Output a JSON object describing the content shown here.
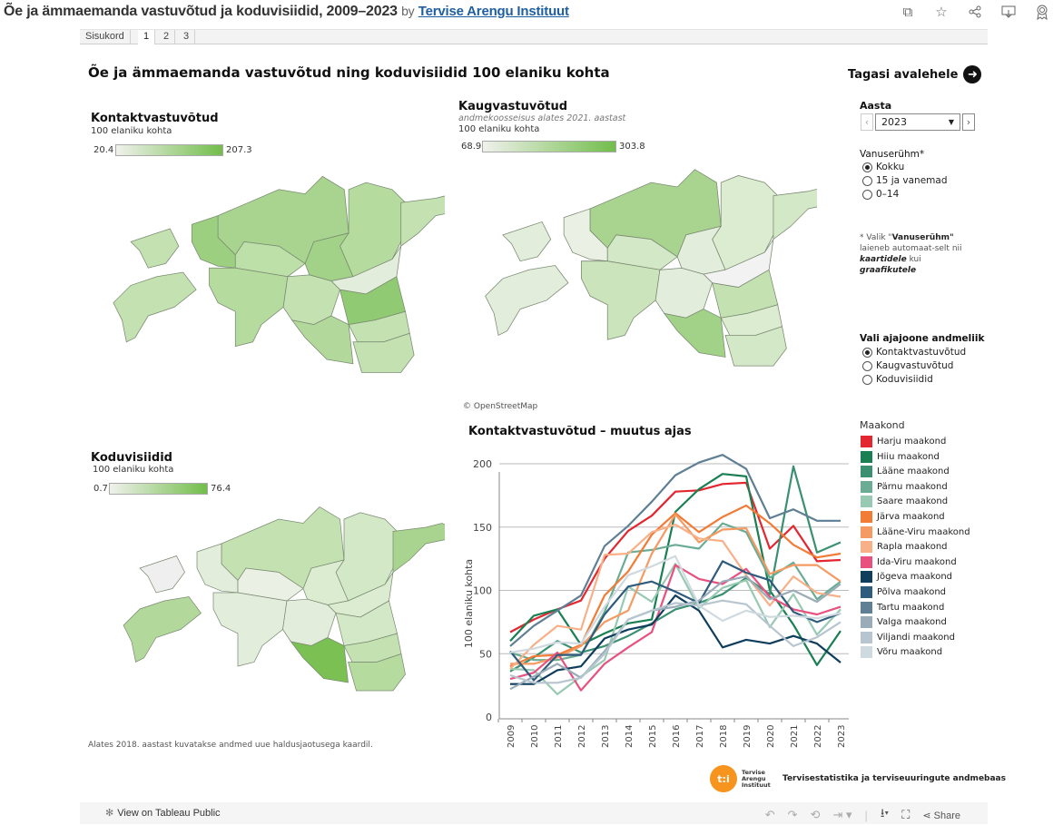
{
  "header": {
    "title": "Õe ja ämmaemanda vastuvõtud ja koduvisiidid, 2009–2023",
    "by": "by",
    "author": "Tervise Arengu Instituut",
    "icons": [
      "copy-icon",
      "star-icon",
      "share-icon",
      "download-icon",
      "award-icon"
    ]
  },
  "tabs": [
    {
      "label": "Sisukord",
      "active": false
    },
    {
      "label": "1",
      "active": true
    },
    {
      "label": "2",
      "active": false
    },
    {
      "label": "3",
      "active": false
    }
  ],
  "dashboard": {
    "title": "Õe ja ämmaemanda vastuvõtud ning koduvisiidid  100 elaniku kohta",
    "back_link": "Tagasi avalehele"
  },
  "maps": {
    "contact": {
      "title": "Kontaktvastuvõtud",
      "unit": "100 elaniku kohta",
      "min": "20.4",
      "max": "207.3"
    },
    "remote": {
      "title": "Kaugvastuvõtud",
      "note": "andmekoosseisus alates 2021. aastast",
      "unit": "100 elaniku kohta",
      "min": "68.9",
      "max": "303.8"
    },
    "home": {
      "title": "Koduvisiidid",
      "unit": "100 elaniku kohta",
      "min": "0.7",
      "max": "76.4"
    },
    "attribution": "© OpenStreetMap",
    "footnote": "Alates 2018. aastast kuvatakse andmed uue haldusjaotusega kaardil."
  },
  "controls": {
    "year_label": "Aasta",
    "year_value": "2023",
    "age_label": "Vanuserühm*",
    "age_options": [
      {
        "label": "Kokku",
        "selected": true
      },
      {
        "label": "15 ja vanemad",
        "selected": false
      },
      {
        "label": "0–14",
        "selected": false
      }
    ],
    "note_parts": [
      "* Valik \"",
      "Vanuserühm\"",
      " laieneb automaat-selt nii ",
      "kaartidele",
      " kui ",
      "graafikutele"
    ],
    "measure_label": "Vali ajajoone andmeliik",
    "measure_options": [
      {
        "label": "Kontaktvastuvõtud",
        "selected": true
      },
      {
        "label": "Kaugvastuvõtud",
        "selected": false
      },
      {
        "label": "Koduvisiidid",
        "selected": false
      }
    ]
  },
  "chart_data": {
    "type": "line",
    "title": "Kontaktvastuvõtud – muutus ajas",
    "xlabel": "",
    "ylabel": "100 elaniku kohta",
    "ylim": [
      0,
      220
    ],
    "yticks": [
      0,
      50,
      100,
      150,
      200
    ],
    "grid": true,
    "legend_title": "Maakond",
    "legend_position": "right",
    "x": [
      "2009",
      "2010",
      "2011",
      "2012",
      "2013",
      "2014",
      "2015",
      "2016",
      "2017",
      "2018",
      "2019",
      "2020",
      "2021",
      "2022",
      "2023"
    ],
    "series": [
      {
        "name": "Harju maakond",
        "color": "#e3262f",
        "values": [
          67,
          77,
          85,
          92,
          125,
          147,
          159,
          178,
          179,
          184,
          185,
          133,
          151,
          123,
          124
        ]
      },
      {
        "name": "Hiiu maakond",
        "color": "#1a7f53",
        "values": [
          60,
          80,
          85,
          57,
          66,
          74,
          77,
          162,
          180,
          192,
          190,
          100,
          73,
          41,
          68
        ]
      },
      {
        "name": "Lääne maakond",
        "color": "#3a9070",
        "values": [
          36,
          47,
          60,
          51,
          56,
          64,
          74,
          85,
          90,
          97,
          110,
          97,
          198,
          130,
          138
        ]
      },
      {
        "name": "Pärnu maakond",
        "color": "#6aad94",
        "values": [
          51,
          45,
          45,
          49,
          83,
          130,
          132,
          136,
          133,
          153,
          146,
          110,
          122,
          93,
          107
        ]
      },
      {
        "name": "Saare maakond",
        "color": "#98c9b3",
        "values": [
          38,
          37,
          18,
          32,
          45,
          103,
          91,
          121,
          86,
          102,
          108,
          71,
          97,
          65,
          85
        ]
      },
      {
        "name": "Järva maakond",
        "color": "#f27b35",
        "values": [
          40,
          48,
          49,
          57,
          96,
          115,
          144,
          161,
          146,
          158,
          167,
          153,
          136,
          126,
          129
        ]
      },
      {
        "name": "Lääne-Viru maakond",
        "color": "#f59a62",
        "values": [
          42,
          42,
          47,
          56,
          75,
          84,
          129,
          160,
          138,
          148,
          149,
          113,
          120,
          120,
          107
        ]
      },
      {
        "name": "Rapla maakond",
        "color": "#f7b088",
        "values": [
          38,
          57,
          72,
          69,
          128,
          129,
          146,
          152,
          141,
          139,
          112,
          88,
          111,
          98,
          95
        ]
      },
      {
        "name": "Ida-Viru maakond",
        "color": "#e8507f",
        "values": [
          30,
          35,
          51,
          21,
          42,
          55,
          67,
          120,
          109,
          105,
          117,
          95,
          85,
          81,
          87
        ]
      },
      {
        "name": "Jõgeva maakond",
        "color": "#0f3d5c",
        "values": [
          26,
          26,
          37,
          40,
          62,
          69,
          73,
          96,
          84,
          55,
          61,
          58,
          64,
          58,
          43
        ]
      },
      {
        "name": "Põlva maakond",
        "color": "#2f5c7c",
        "values": [
          52,
          29,
          49,
          49,
          81,
          103,
          107,
          99,
          90,
          123,
          114,
          108,
          83,
          75,
          82
        ]
      },
      {
        "name": "Tartu maakond",
        "color": "#5f7f95",
        "values": [
          56,
          72,
          84,
          96,
          135,
          151,
          170,
          191,
          201,
          207,
          196,
          157,
          164,
          155,
          155
        ]
      },
      {
        "name": "Valga maakond",
        "color": "#9aacb8",
        "values": [
          22,
          32,
          42,
          31,
          52,
          77,
          84,
          87,
          92,
          107,
          111,
          93,
          100,
          91,
          105
        ]
      },
      {
        "name": "Viljandi maakond",
        "color": "#b6c5cf",
        "values": [
          33,
          27,
          27,
          31,
          50,
          77,
          84,
          90,
          88,
          92,
          89,
          72,
          56,
          63,
          75
        ]
      },
      {
        "name": "Võru maakond",
        "color": "#cfd9e0",
        "values": [
          51,
          54,
          59,
          58,
          87,
          112,
          119,
          127,
          88,
          76,
          84,
          79,
          80,
          78,
          82
        ]
      }
    ]
  },
  "footer": {
    "logo_text": "t:i",
    "logo_label": [
      "Tervise",
      "Arengu",
      "Instituut"
    ],
    "database": "Tervisestatistika ja terviseuuringute andmebaas",
    "view_label": "View on Tableau Public",
    "share_label": "Share"
  }
}
